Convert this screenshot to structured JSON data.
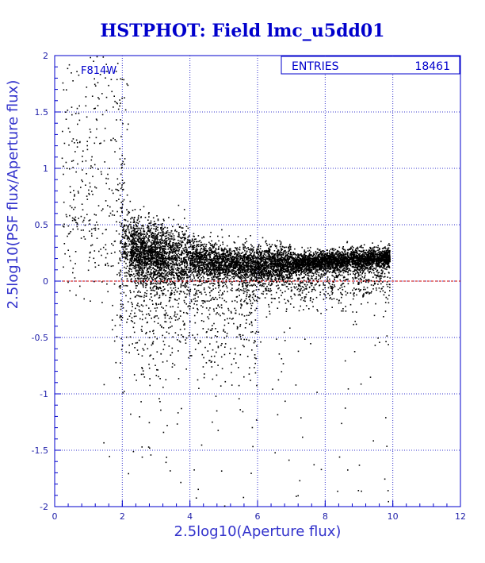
{
  "chart_data": {
    "type": "scatter",
    "title": "HSTPHOT: Field lmc_u5dd01",
    "xlabel": "2.5log10(Aperture flux)",
    "ylabel": "2.5log10(PSF flux/Aperture flux)",
    "xlim": [
      0,
      12
    ],
    "ylim": [
      -2,
      2
    ],
    "xticks": [
      0,
      2,
      4,
      6,
      8,
      10,
      12
    ],
    "yticks": [
      -2,
      -1.5,
      -1,
      -0.5,
      0,
      0.5,
      1,
      1.5,
      2
    ],
    "xtick_labels": [
      "0",
      "2",
      "4",
      "6",
      "8",
      "10",
      "12"
    ],
    "ytick_labels": [
      "-2",
      "-1.5",
      "-1",
      "-0.5",
      "0",
      "0.5",
      "1",
      "1.5",
      "2"
    ],
    "grid": true,
    "reference_line": {
      "y": 0,
      "color": "#cc0000",
      "style": "dashed"
    },
    "filter_label": "F814W",
    "stats_box": {
      "label": "ENTRIES",
      "value": "18461",
      "position": "top-right"
    },
    "point_color": "#000000",
    "axis_color": "#0000cc",
    "grid_color": "#3333cc",
    "distribution": {
      "description_free": true,
      "ridge": [
        {
          "x": 1.9,
          "y": 0.36
        },
        {
          "x": 2.5,
          "y": 0.28
        },
        {
          "x": 3.5,
          "y": 0.22
        },
        {
          "x": 4.5,
          "y": 0.18
        },
        {
          "x": 5.5,
          "y": 0.16
        },
        {
          "x": 6.5,
          "y": 0.16
        },
        {
          "x": 7.5,
          "y": 0.17
        },
        {
          "x": 8.5,
          "y": 0.19
        },
        {
          "x": 9.5,
          "y": 0.21
        },
        {
          "x": 10.5,
          "y": 0.24
        }
      ],
      "x_range": [
        0.1,
        10.7
      ],
      "dense_x_range": [
        2.2,
        9.9
      ]
    }
  }
}
